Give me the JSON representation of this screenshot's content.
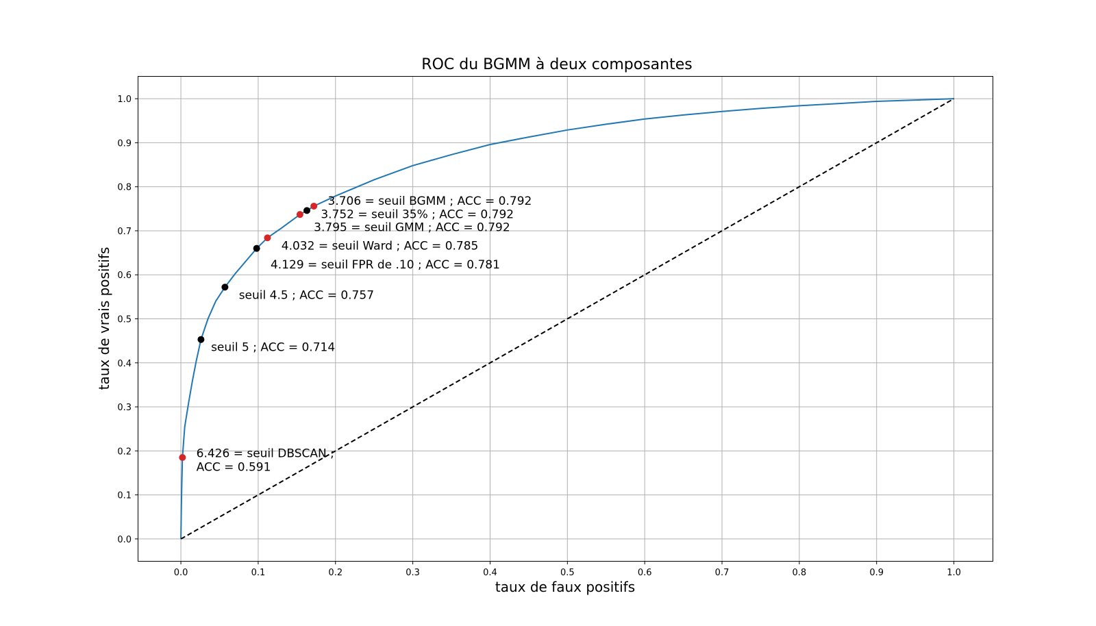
{
  "chart_data": {
    "type": "line",
    "title": "ROC du BGMM à deux composantes",
    "xlabel": "taux de faux positifs",
    "ylabel": "taux de vrais positifs",
    "xlim": [
      -0.055,
      1.05
    ],
    "ylim": [
      -0.05,
      1.05
    ],
    "x_ticks": [
      0.0,
      0.1,
      0.2,
      0.3,
      0.4,
      0.5,
      0.6,
      0.7,
      0.8,
      0.9,
      1.0
    ],
    "y_ticks": [
      0.0,
      0.1,
      0.2,
      0.3,
      0.4,
      0.5,
      0.6,
      0.7,
      0.8,
      0.9,
      1.0
    ],
    "x_tick_labels": [
      "0.0",
      "0.1",
      "0.2",
      "0.3",
      "0.4",
      "0.5",
      "0.6",
      "0.7",
      "0.8",
      "0.9",
      "1.0"
    ],
    "y_tick_labels": [
      "0.0",
      "0.1",
      "0.2",
      "0.3",
      "0.4",
      "0.5",
      "0.6",
      "0.7",
      "0.8",
      "0.9",
      "1.0"
    ],
    "grid": true,
    "colors": {
      "roc": "#1f77b4",
      "diagonal": "#000000",
      "point_red": "#d62728",
      "point_black": "#000000"
    },
    "series": [
      {
        "style": "solid",
        "color": "#1f77b4",
        "points": [
          [
            0.0,
            0.0
          ],
          [
            0.0005,
            0.06
          ],
          [
            0.001,
            0.11
          ],
          [
            0.002,
            0.185
          ],
          [
            0.005,
            0.255
          ],
          [
            0.01,
            0.31
          ],
          [
            0.015,
            0.36
          ],
          [
            0.02,
            0.405
          ],
          [
            0.026,
            0.453
          ],
          [
            0.035,
            0.5
          ],
          [
            0.045,
            0.54
          ],
          [
            0.057,
            0.572
          ],
          [
            0.07,
            0.602
          ],
          [
            0.085,
            0.633
          ],
          [
            0.098,
            0.66
          ],
          [
            0.112,
            0.684
          ],
          [
            0.13,
            0.706
          ],
          [
            0.154,
            0.737
          ],
          [
            0.163,
            0.746
          ],
          [
            0.172,
            0.756
          ],
          [
            0.2,
            0.779
          ],
          [
            0.25,
            0.816
          ],
          [
            0.3,
            0.848
          ],
          [
            0.35,
            0.873
          ],
          [
            0.4,
            0.896
          ],
          [
            0.45,
            0.913
          ],
          [
            0.5,
            0.929
          ],
          [
            0.55,
            0.942
          ],
          [
            0.6,
            0.954
          ],
          [
            0.65,
            0.963
          ],
          [
            0.7,
            0.971
          ],
          [
            0.75,
            0.978
          ],
          [
            0.8,
            0.984
          ],
          [
            0.85,
            0.989
          ],
          [
            0.9,
            0.994
          ],
          [
            0.95,
            0.997
          ],
          [
            1.0,
            1.0
          ]
        ]
      },
      {
        "style": "dashed",
        "color": "#000000",
        "points": [
          [
            0.0,
            0.0
          ],
          [
            1.0,
            1.0
          ]
        ]
      }
    ],
    "annotated_points": [
      {
        "x": 0.172,
        "y": 0.756,
        "color": "#d62728",
        "label": "3.706 = seuil BGMM ; ACC = 0.792",
        "label_x": 0.19,
        "label_y": 0.759
      },
      {
        "x": 0.163,
        "y": 0.746,
        "color": "#000000",
        "label": "3.752 = seuil 35% ; ACC = 0.792",
        "label_x": 0.181,
        "label_y": 0.729
      },
      {
        "x": 0.154,
        "y": 0.737,
        "color": "#d62728",
        "label": "3.795 = seuil GMM ; ACC = 0.792",
        "label_x": 0.172,
        "label_y": 0.699
      },
      {
        "x": 0.112,
        "y": 0.684,
        "color": "#d62728",
        "label": "4.032 = seuil Ward ; ACC = 0.785",
        "label_x": 0.13,
        "label_y": 0.657
      },
      {
        "x": 0.098,
        "y": 0.66,
        "color": "#000000",
        "label": "4.129 = seuil FPR de .10 ; ACC = 0.781",
        "label_x": 0.116,
        "label_y": 0.614
      },
      {
        "x": 0.057,
        "y": 0.572,
        "color": "#000000",
        "label": "seuil 4.5 ; ACC = 0.757",
        "label_x": 0.075,
        "label_y": 0.545
      },
      {
        "x": 0.026,
        "y": 0.453,
        "color": "#000000",
        "label": "seuil 5 ; ACC = 0.714",
        "label_x": 0.039,
        "label_y": 0.427
      },
      {
        "x": 0.002,
        "y": 0.185,
        "color": "#d62728",
        "label": "6.426 = seuil DBSCAN ;",
        "label2": "ACC = 0.591",
        "label_x": 0.02,
        "label_y": 0.186
      }
    ]
  }
}
